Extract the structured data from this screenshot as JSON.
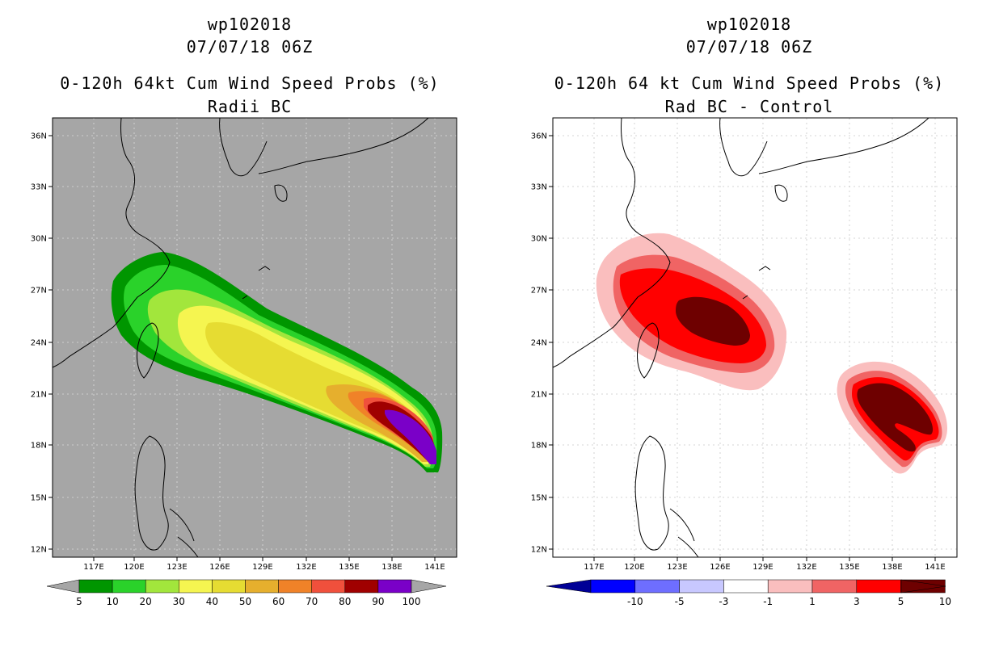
{
  "panels": [
    {
      "id": "left",
      "title_line1": "wp102018",
      "title_line2": "07/07/18 06Z",
      "title_line3": "0-120h 64kt Cum Wind Speed Probs (%)",
      "title_line4": "Radii BC",
      "background": "#a6a6a6",
      "lat_labels": [
        "36N",
        "33N",
        "30N",
        "27N",
        "24N",
        "21N",
        "18N",
        "15N",
        "12N"
      ],
      "lon_labels": [
        "117E",
        "120E",
        "123E",
        "126E",
        "129E",
        "132E",
        "135E",
        "138E",
        "141E"
      ],
      "colorbar_labels": [
        "5",
        "10",
        "20",
        "30",
        "40",
        "50",
        "60",
        "70",
        "80",
        "90",
        "100"
      ],
      "colorbar_colors": [
        "#009600",
        "#2ad22a",
        "#a2e63c",
        "#f5f550",
        "#e6dc32",
        "#e6af2d",
        "#f08228",
        "#f0503c",
        "#a00000",
        "#7a00c8"
      ]
    },
    {
      "id": "right",
      "title_line1": "wp102018",
      "title_line2": "07/07/18 06Z",
      "title_line3": "0-120h 64 kt Cum Wind Speed Probs (%)",
      "title_line4": "Rad BC - Control",
      "background": "#ffffff",
      "lat_labels": [
        "36N",
        "33N",
        "30N",
        "27N",
        "24N",
        "21N",
        "18N",
        "15N",
        "12N"
      ],
      "lon_labels": [
        "117E",
        "120E",
        "123E",
        "126E",
        "129E",
        "132E",
        "135E",
        "138E",
        "141E"
      ],
      "colorbar_labels": [
        "-10",
        "-5",
        "-3",
        "-1",
        "1",
        "3",
        "5",
        "10"
      ],
      "colorbar_colors": [
        "#0000ff",
        "#6e6eff",
        "#c8c8ff",
        "#ffffff",
        "#fabebe",
        "#f06464",
        "#ff0000",
        "#6e0000"
      ],
      "colorbar_end_colors": [
        "#000096",
        "#6e0000"
      ]
    }
  ],
  "shading_colors": {
    "c5": "#009600",
    "c10": "#2ad22a",
    "c20": "#a2e63c",
    "c30": "#f5f550",
    "c40": "#e6dc32",
    "c50": "#e6af2d",
    "c60": "#f08228",
    "c70": "#f0503c",
    "c80": "#a00000",
    "c90": "#7a00c8",
    "d1": "#fabebe",
    "d3": "#f06464",
    "d5": "#ff0000",
    "d10": "#6e0000"
  }
}
